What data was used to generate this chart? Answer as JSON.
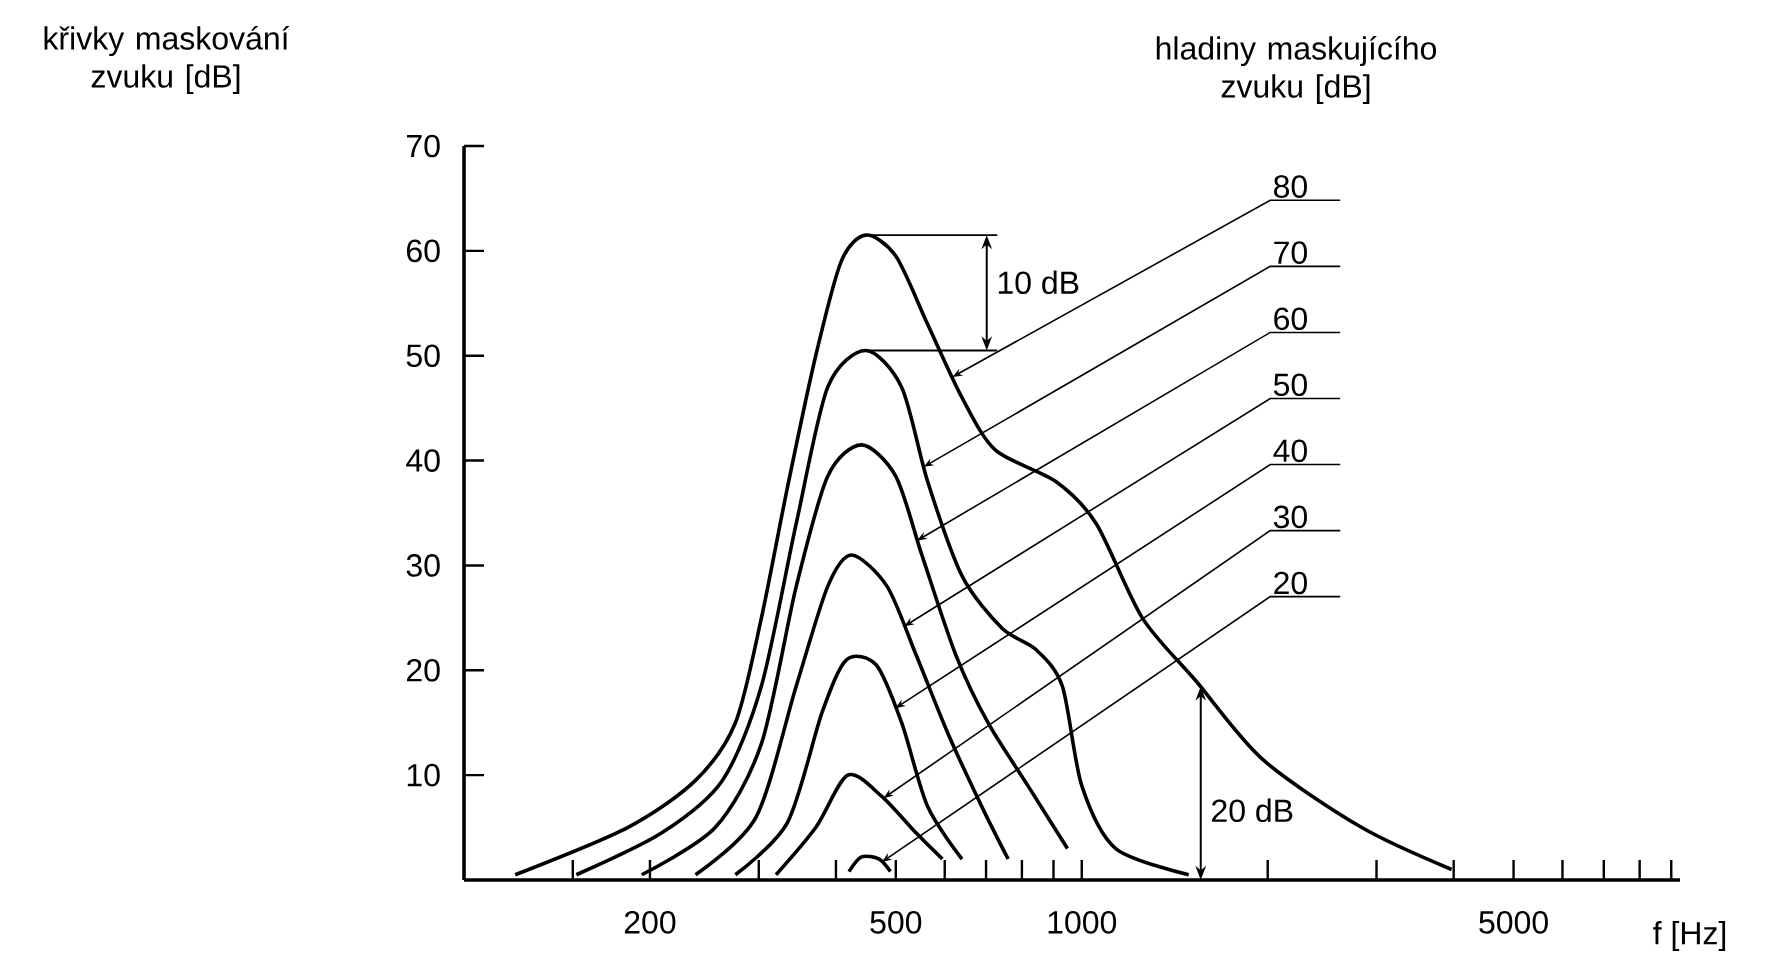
{
  "chart_data": {
    "type": "line",
    "ylabel": "křivky maskování zvuku [dB]",
    "xlabel": "f [Hz]",
    "legend_title": "hladiny maskujícího zvuku [dB]",
    "log": "x",
    "line_style": "solid",
    "marker": "none",
    "xlim": [
      100,
      9300
    ],
    "ylim": [
      0,
      70
    ],
    "xticks": [
      {
        "value": 150,
        "label": null
      },
      200,
      {
        "value": 300,
        "label": null
      },
      {
        "value": 400,
        "label": null
      },
      500,
      {
        "value": 600,
        "label": null
      },
      {
        "value": 700,
        "label": null
      },
      {
        "value": 800,
        "label": null
      },
      {
        "value": 900,
        "label": null
      },
      1000,
      {
        "value": 2000,
        "label": null
      },
      {
        "value": 3000,
        "label": null
      },
      {
        "value": 4000,
        "label": null
      },
      5000,
      {
        "value": 6000,
        "label": null
      },
      {
        "value": 7000,
        "label": null
      },
      {
        "value": 8000,
        "label": null
      },
      {
        "value": 9000,
        "label": null
      }
    ],
    "yticks": [
      10,
      20,
      30,
      40,
      50,
      60,
      70
    ],
    "series": [
      {
        "name": "80",
        "color": "#000000",
        "x": [
          121,
          184,
          237,
          275,
          303,
          334,
          371,
          408,
          447,
          500,
          563,
          640,
          725,
          908,
          1055,
          1253,
          1530,
          1963,
          2840,
          3970
        ],
        "values": [
          0.5,
          5,
          9.5,
          15,
          25,
          37.5,
          50,
          59,
          61.5,
          59.5,
          53,
          46,
          41,
          38,
          34,
          25,
          19,
          11.5,
          5,
          1
        ]
      },
      {
        "name": "70",
        "color": "#000000",
        "x": [
          152,
          209,
          262,
          303,
          345,
          388,
          447,
          511,
          563,
          640,
          743,
          842,
          930,
          1000,
          1135,
          1490
        ],
        "values": [
          0.5,
          4.5,
          9.5,
          18.5,
          34,
          47,
          50.5,
          47,
          38,
          29,
          24,
          22,
          18.5,
          9,
          3,
          0.5
        ]
      },
      {
        "name": "60",
        "color": "#000000",
        "x": [
          194,
          255,
          303,
          345,
          388,
          440,
          500,
          551,
          625,
          705,
          818,
          948
        ],
        "values": [
          0.5,
          5,
          13,
          28,
          38.5,
          41.5,
          38.5,
          31,
          21.5,
          15,
          9,
          3
        ]
      },
      {
        "name": "50",
        "color": "#000000",
        "x": [
          237,
          297,
          345,
          388,
          424,
          484,
          539,
          607,
          689,
          760
        ],
        "values": [
          0.5,
          6,
          18.5,
          28,
          31,
          28,
          21.5,
          14,
          7,
          2
        ]
      },
      {
        "name": "40",
        "color": "#000000",
        "x": [
          275,
          334,
          380,
          416,
          465,
          511,
          563,
          640
        ],
        "values": [
          0.5,
          5.5,
          16,
          21,
          20.5,
          15,
          7,
          2
        ]
      },
      {
        "name": "30",
        "color": "#000000",
        "x": [
          320,
          371,
          418,
          474,
          539,
          595
        ],
        "values": [
          0.5,
          5,
          10,
          8,
          4.5,
          2
        ]
      },
      {
        "name": "20",
        "color": "#000000",
        "x": [
          420,
          440,
          470,
          490
        ],
        "values": [
          0.8,
          2.2,
          2,
          0.8
        ]
      }
    ],
    "annotations": [
      {
        "text": "10 dB",
        "x": 447,
        "y": 61.5
      },
      "20 dB"
    ]
  }
}
